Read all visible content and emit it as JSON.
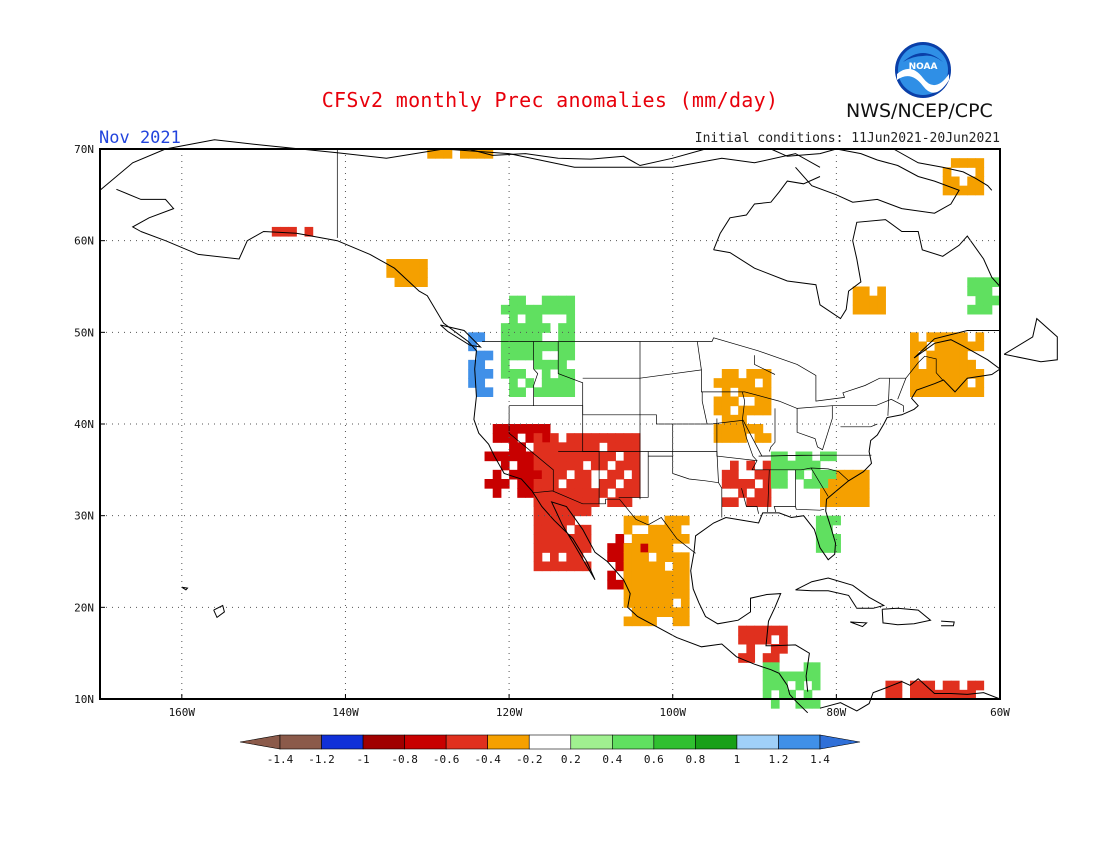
{
  "header": {
    "title": "CFSv2 monthly Prec anomalies (mm/day)",
    "agency": "NWS/NCEP/CPC",
    "month": "Nov 2021",
    "initial_conditions": "Initial conditions: 11Jun2021-20Jun2021",
    "logo_text": "NOAA"
  },
  "colors": {
    "title": "#e8000b",
    "month": "#2244dd",
    "neg_1_4": "#8b5a4a",
    "neg_1_2": "#1030d8",
    "neg_1_0": "#a00000",
    "neg_0_8": "#c80000",
    "neg_0_6": "#e0301e",
    "neg_0_4": "#f5a000",
    "neutral": "#ffffff",
    "pos_0_2": "#a0f090",
    "pos_0_4": "#60e060",
    "pos_0_6": "#30c030",
    "pos_0_8": "#18a018",
    "pos_1_0": "#a0d0f8",
    "pos_1_2": "#4090e8",
    "pos_1_4": "#3070d8"
  },
  "map": {
    "projection": "lat-lon",
    "lon_range": [
      -170,
      -60
    ],
    "lat_range": [
      10,
      70
    ],
    "grid": true,
    "x_ticks": [
      "160W",
      "140W",
      "120W",
      "100W",
      "80W",
      "60W"
    ],
    "y_ticks": [
      "10N",
      "20N",
      "30N",
      "40N",
      "50N",
      "60N",
      "70N"
    ]
  },
  "colorbar": {
    "labels": [
      "-1.4",
      "-1.2",
      "-1",
      "-0.8",
      "-0.6",
      "-0.4",
      "-0.2",
      "0.2",
      "0.4",
      "0.6",
      "0.8",
      "1",
      "1.2",
      "1.4"
    ],
    "colors": [
      "#8b5a4a",
      "#8b5a4a",
      "#1030d8",
      "#a00000",
      "#c80000",
      "#e0301e",
      "#f5a000",
      "#ffffff",
      "#a0f090",
      "#60e060",
      "#30c030",
      "#18a018",
      "#a0d0f8",
      "#4090e8",
      "#3070d8"
    ]
  },
  "anomaly_regions": [
    {
      "region": "Pacific Northwest coast",
      "lon": [
        -125,
        -122
      ],
      "lat": [
        43,
        50
      ],
      "value": 1.2
    },
    {
      "region": "Interior Northwest",
      "lon": [
        -121,
        -112
      ],
      "lat": [
        43,
        54
      ],
      "value": 0.4
    },
    {
      "region": "California",
      "lon": [
        -123,
        -115
      ],
      "lat": [
        32,
        40
      ],
      "value": -0.8
    },
    {
      "region": "Southwest US",
      "lon": [
        -117,
        -104
      ],
      "lat": [
        31,
        39
      ],
      "value": -0.6
    },
    {
      "region": "Baja California",
      "lon": [
        -117,
        -110
      ],
      "lat": [
        24,
        33
      ],
      "value": -0.6
    },
    {
      "region": "Western Mexico",
      "lon": [
        -108,
        -103
      ],
      "lat": [
        22,
        28
      ],
      "value": -0.8
    },
    {
      "region": "Central Mexico",
      "lon": [
        -106,
        -98
      ],
      "lat": [
        18,
        30
      ],
      "value": -0.4
    },
    {
      "region": "Lower Mississippi",
      "lon": [
        -94,
        -88
      ],
      "lat": [
        31,
        36
      ],
      "value": -0.6
    },
    {
      "region": "Midwest",
      "lon": [
        -95,
        -88
      ],
      "lat": [
        38,
        46
      ],
      "value": -0.4
    },
    {
      "region": "Southeast US",
      "lon": [
        -88,
        -80
      ],
      "lat": [
        33,
        37
      ],
      "value": 0.4
    },
    {
      "region": "Florida",
      "lon": [
        -82.5,
        -80
      ],
      "lat": [
        26,
        30
      ],
      "value": 0.4
    },
    {
      "region": "Carolinas coast",
      "lon": [
        -82,
        -76
      ],
      "lat": [
        31,
        35
      ],
      "value": -0.4
    },
    {
      "region": "Central America",
      "lon": [
        -92,
        -86
      ],
      "lat": [
        14,
        18
      ],
      "value": -0.6
    },
    {
      "region": "Central America Pacific",
      "lon": [
        -89,
        -82
      ],
      "lat": [
        9,
        14
      ],
      "value": 0.4
    },
    {
      "region": "Southern Alaska",
      "lon": [
        -150,
        -144
      ],
      "lat": [
        60.5,
        61.5
      ],
      "value": -0.6
    },
    {
      "region": "Southeast Alaska",
      "lon": [
        -135,
        -130
      ],
      "lat": [
        55,
        58
      ],
      "value": -0.4
    },
    {
      "region": "Eastern Canada",
      "lon": [
        -71,
        -62
      ],
      "lat": [
        43,
        50
      ],
      "value": -0.4
    },
    {
      "region": "Quebec",
      "lon": [
        -78,
        -74
      ],
      "lat": [
        52,
        55
      ],
      "value": -0.4
    },
    {
      "region": "Labrador",
      "lon": [
        -64,
        -60
      ],
      "lat": [
        52,
        56
      ],
      "value": 0.4
    },
    {
      "region": "Greenland coast",
      "lon": [
        -67,
        -62
      ],
      "lat": [
        65,
        69
      ],
      "value": -0.4
    },
    {
      "region": "Arctic coast",
      "lon": [
        -130,
        -122
      ],
      "lat": [
        69,
        70
      ],
      "value": -0.4
    },
    {
      "region": "Northern South America",
      "lon": [
        -74,
        -62
      ],
      "lat": [
        10,
        12
      ],
      "value": -0.6
    }
  ]
}
